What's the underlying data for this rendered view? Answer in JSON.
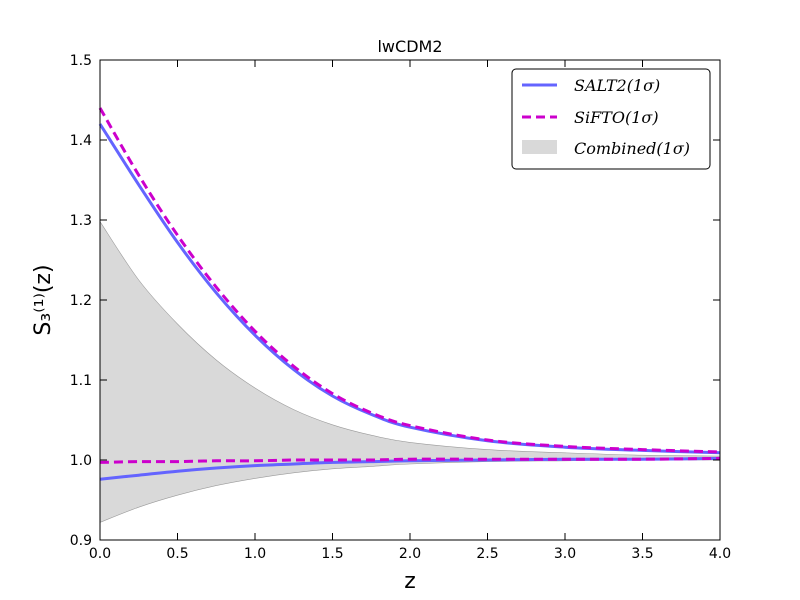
{
  "chart_data": {
    "type": "line",
    "title": "lwCDM2",
    "xlabel": "z",
    "ylabel": "S₃⁽¹⁾(z)",
    "xlim": [
      0.0,
      4.0
    ],
    "ylim": [
      0.9,
      1.5
    ],
    "x_ticks": [
      "0.0",
      "0.5",
      "1.0",
      "1.5",
      "2.0",
      "2.5",
      "3.0",
      "3.5",
      "4.0"
    ],
    "y_ticks": [
      "0.9",
      "1.0",
      "1.1",
      "1.2",
      "1.3",
      "1.4",
      "1.5"
    ],
    "legend_position": "upper-right",
    "grid": false,
    "series": [
      {
        "name": "SALT2(1σ)",
        "style": "solid",
        "color": "#6464ff",
        "x": [
          0.0,
          0.25,
          0.5,
          0.75,
          1.0,
          1.25,
          1.5,
          1.75,
          2.0,
          2.5,
          3.0,
          3.5,
          4.0
        ],
        "upper": [
          1.42,
          1.344,
          1.272,
          1.209,
          1.156,
          1.113,
          1.08,
          1.057,
          1.041,
          1.024,
          1.016,
          1.012,
          1.009
        ],
        "lower": [
          0.976,
          0.981,
          0.986,
          0.99,
          0.993,
          0.995,
          0.997,
          0.998,
          0.999,
          1.0,
          1.001,
          1.001,
          1.002
        ]
      },
      {
        "name": "SiFTO(1σ)",
        "style": "dashed",
        "color": "#cc00cc",
        "x": [
          0.0,
          0.25,
          0.5,
          0.75,
          1.0,
          1.25,
          1.5,
          1.75,
          2.0,
          2.5,
          3.0,
          3.5,
          4.0
        ],
        "upper": [
          1.44,
          1.356,
          1.281,
          1.216,
          1.161,
          1.117,
          1.083,
          1.059,
          1.043,
          1.025,
          1.017,
          1.013,
          1.01
        ],
        "lower": [
          0.997,
          0.998,
          0.998,
          0.999,
          0.999,
          1.0,
          1.0,
          1.0,
          1.001,
          1.001,
          1.001,
          1.001,
          1.002
        ]
      },
      {
        "name": "Combined(1σ)",
        "style": "band",
        "color": "#d9d9d9",
        "x": [
          0.0,
          0.25,
          0.5,
          0.75,
          1.0,
          1.25,
          1.5,
          1.75,
          2.0,
          2.5,
          3.0,
          3.5,
          4.0
        ],
        "upper": [
          1.298,
          1.225,
          1.17,
          1.125,
          1.09,
          1.063,
          1.044,
          1.031,
          1.022,
          1.013,
          1.009,
          1.006,
          1.005
        ],
        "lower": [
          0.922,
          0.941,
          0.956,
          0.968,
          0.977,
          0.984,
          0.989,
          0.992,
          0.995,
          0.998,
          0.999,
          1.0,
          1.0
        ]
      }
    ]
  }
}
